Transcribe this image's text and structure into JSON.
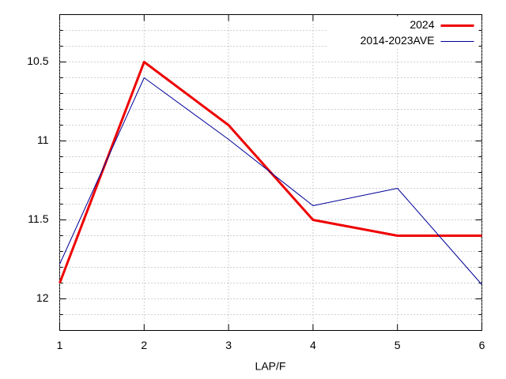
{
  "chart_data": {
    "type": "line",
    "x_label": "LAP/F",
    "x": [
      1,
      2,
      3,
      4,
      5,
      6
    ],
    "series": [
      {
        "name": "2024",
        "color": "#ee0000",
        "width": 3,
        "values": [
          11.9,
          10.5,
          10.9,
          11.5,
          11.6,
          11.6
        ]
      },
      {
        "name": "2014-2023AVE",
        "color": "#000099",
        "width": 1,
        "values": [
          11.78,
          10.6,
          10.99,
          11.41,
          11.3,
          11.91
        ]
      }
    ],
    "xlim": [
      1,
      6
    ],
    "xticks": [
      1,
      2,
      3,
      4,
      5,
      6
    ],
    "ylim": [
      10.2,
      12.2
    ],
    "yticks": [
      10.5,
      11,
      11.5,
      12
    ],
    "yminorticks": [
      10.3,
      10.4,
      10.6,
      10.7,
      10.8,
      10.9,
      11.1,
      11.2,
      11.3,
      11.4,
      11.6,
      11.7,
      11.8,
      11.9,
      12.1
    ],
    "y_reversed": true,
    "grid": true,
    "legend": "top-right"
  }
}
